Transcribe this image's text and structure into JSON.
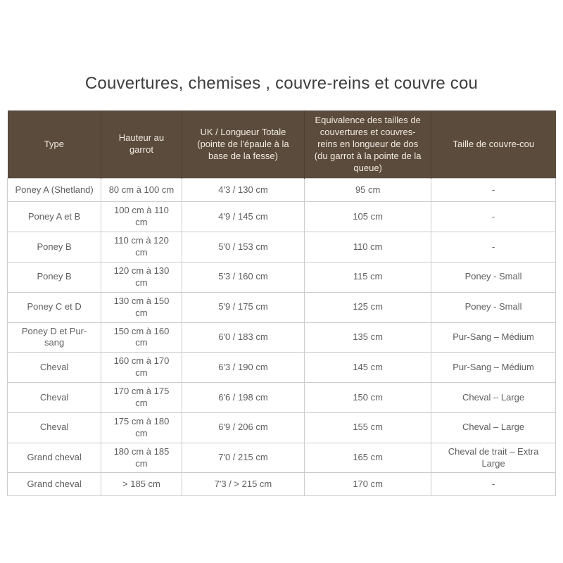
{
  "page": {
    "title": "Couvertures, chemises , couvre-reins et couvre cou"
  },
  "colors": {
    "header_bg": "#5b4b3d",
    "header_text": "#f2ece2",
    "body_text": "#5e5e5e",
    "border": "#cccccc",
    "title_text": "#3d3d3d",
    "page_bg": "#ffffff"
  },
  "table": {
    "columns": [
      "Type",
      "Hauteur au garrot",
      "UK / Longueur Totale (pointe de l'épaule à la base de la fesse)",
      "Equivalence des tailles de couvertures et couvres-reins en longueur de dos (du garrot à la pointe de la queue)",
      "Taille de couvre-cou"
    ],
    "rows": [
      [
        "Poney A (Shetland)",
        "80 cm à 100 cm",
        "4'3 / 130 cm",
        "95 cm",
        "-"
      ],
      [
        "Poney A et B",
        "100 cm à 110 cm",
        "4'9 / 145 cm",
        "105 cm",
        "-"
      ],
      [
        "Poney B",
        "110 cm à 120 cm",
        "5'0 / 153 cm",
        "110 cm",
        "-"
      ],
      [
        "Poney B",
        "120 cm à 130 cm",
        "5'3 / 160 cm",
        "115 cm",
        "Poney - Small"
      ],
      [
        "Poney C et D",
        "130 cm à 150 cm",
        "5'9 / 175 cm",
        "125 cm",
        "Poney - Small"
      ],
      [
        "Poney D et Pur-sang",
        "150 cm à 160 cm",
        "6'0 / 183 cm",
        "135 cm",
        "Pur-Sang – Médium"
      ],
      [
        "Cheval",
        "160 cm à 170 cm",
        "6'3 / 190 cm",
        "145 cm",
        "Pur-Sang – Médium"
      ],
      [
        "Cheval",
        "170 cm à 175 cm",
        "6'6 / 198 cm",
        "150 cm",
        "Cheval – Large"
      ],
      [
        "Cheval",
        "175 cm à 180 cm",
        "6'9 / 206 cm",
        "155 cm",
        "Cheval – Large"
      ],
      [
        "Grand cheval",
        "180 cm à 185 cm",
        "7'0 / 215 cm",
        "165 cm",
        "Cheval de trait – Extra Large"
      ],
      [
        "Grand cheval",
        "> 185 cm",
        "7'3 / > 215 cm",
        "170 cm",
        "-"
      ]
    ]
  }
}
